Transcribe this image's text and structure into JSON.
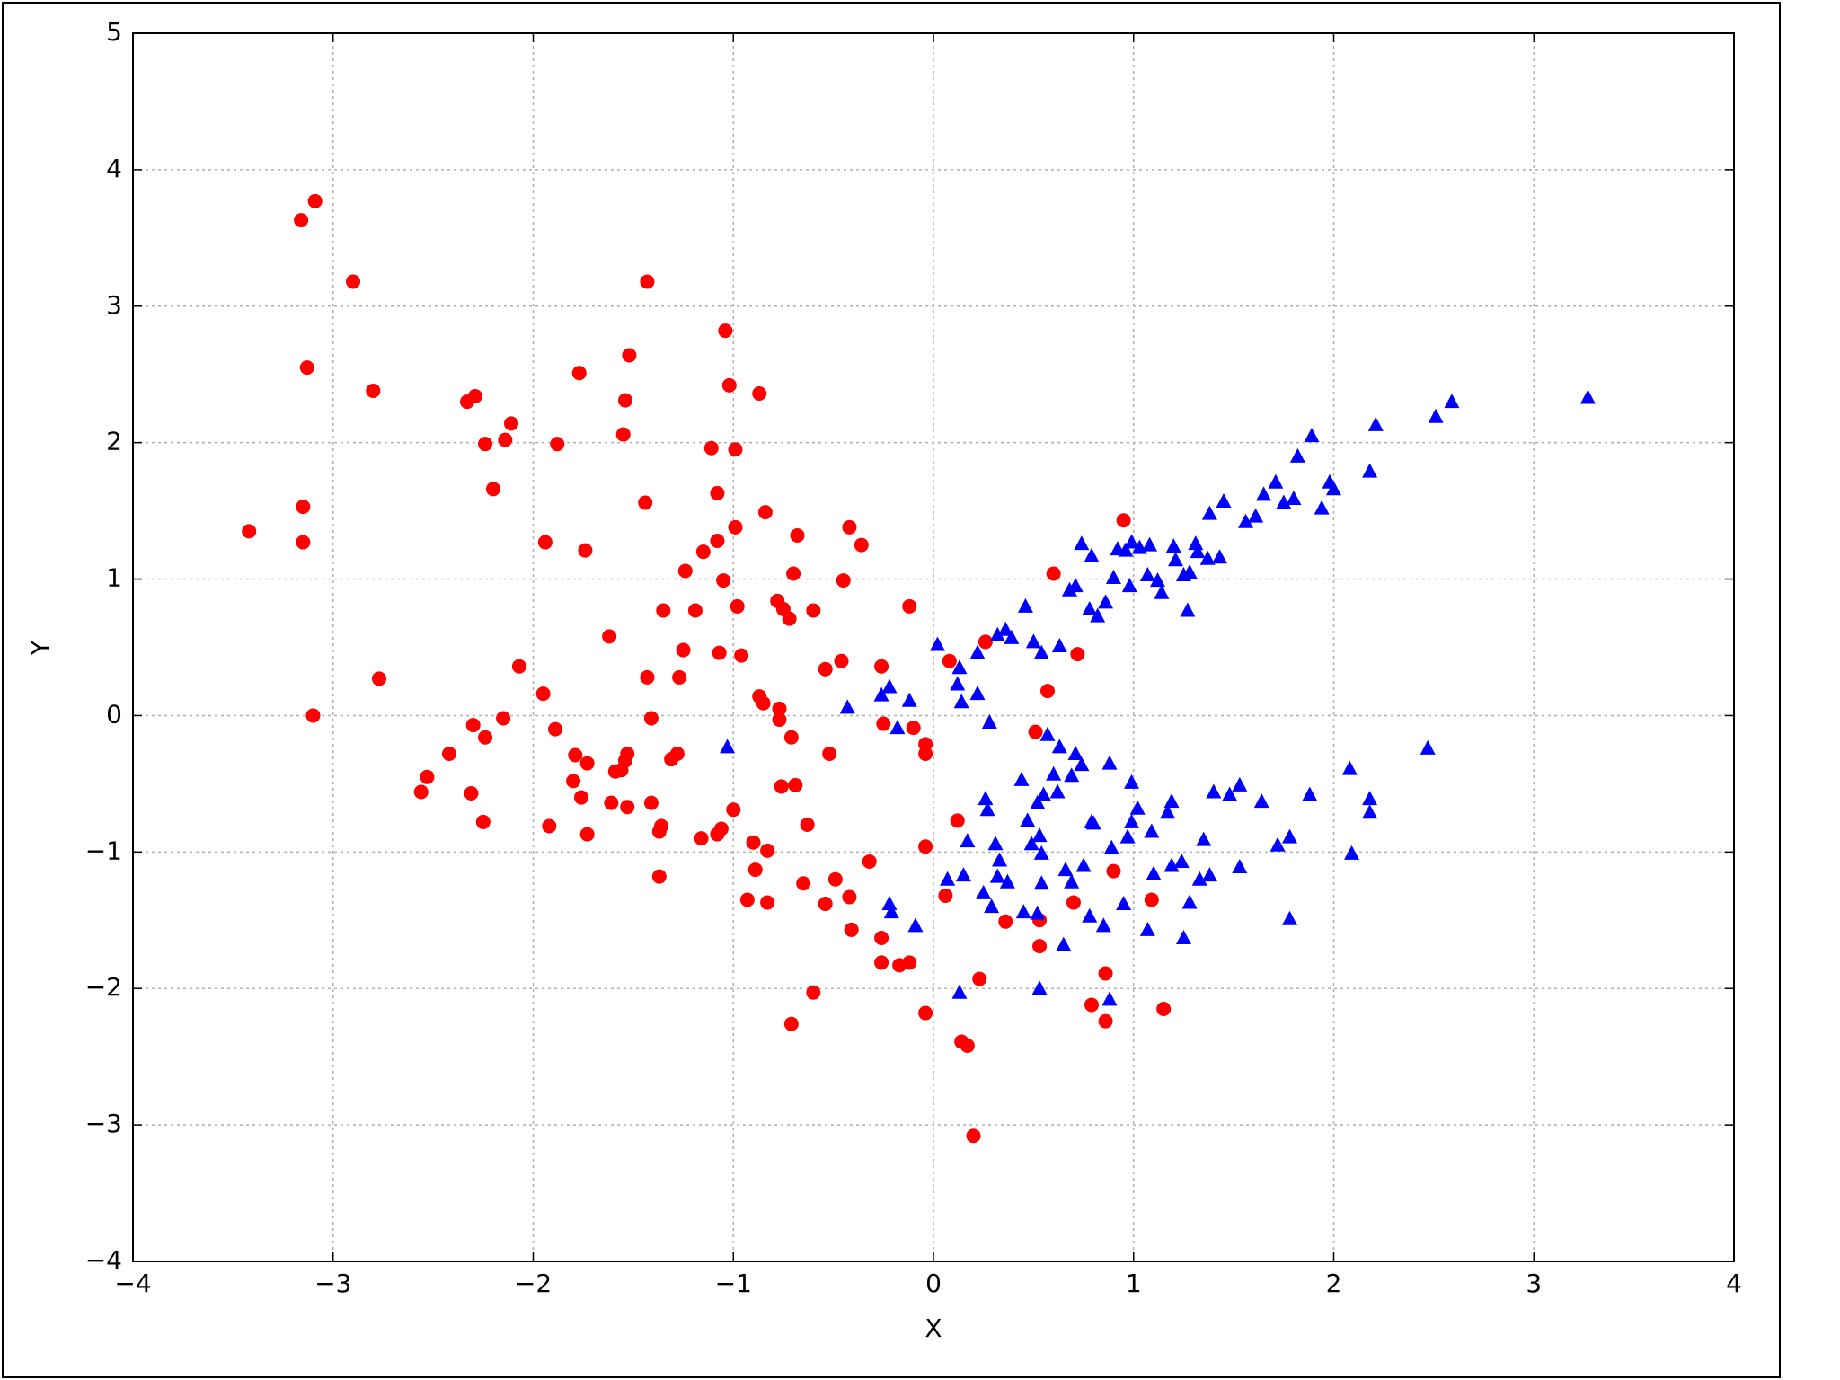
{
  "chart_data": {
    "type": "scatter",
    "x_label": "X",
    "y_label": "Y",
    "grid": true,
    "xlim": [
      -4,
      4
    ],
    "ylim": [
      -4,
      5
    ],
    "xticks": [
      {
        "value": -4,
        "label": "−4"
      },
      {
        "value": -3,
        "label": "−3"
      },
      {
        "value": -2,
        "label": "−2"
      },
      {
        "value": -1,
        "label": "−1"
      },
      0,
      1,
      2,
      3,
      4
    ],
    "yticks": [
      {
        "value": -4,
        "label": "−4"
      },
      {
        "value": -3,
        "label": "−3"
      },
      {
        "value": -2,
        "label": "−2"
      },
      {
        "value": -1,
        "label": "−1"
      },
      0,
      1,
      2,
      3,
      4,
      5
    ],
    "series": [
      {
        "color": "#ff0000",
        "marker": "circle",
        "x": [
          -3.09,
          -3.16,
          -2.9,
          -3.13,
          -2.8,
          -2.33,
          -2.29,
          -2.11,
          -2.14,
          -2.24,
          -1.88,
          -2.2,
          -3.15,
          -3.42,
          -3.15,
          -1.94,
          -1.74,
          -2.77,
          -3.1,
          -2.07,
          -1.95,
          -2.15,
          -2.3,
          -2.24,
          -2.42,
          -2.53,
          -2.56,
          -2.31,
          -2.25,
          -1.92,
          -1.89,
          -1.77,
          -1.52,
          -1.43,
          -1.54,
          -1.55,
          -1.44,
          -1.04,
          -1.02,
          -0.87,
          -1.11,
          -0.99,
          -1.08,
          -0.84,
          -0.99,
          -1.08,
          -1.15,
          -1.24,
          -1.05,
          -0.98,
          -1.19,
          -1.35,
          -1.62,
          -1.25,
          -1.07,
          -0.96,
          -1.43,
          -1.27,
          -1.41,
          -0.68,
          -0.7,
          -0.78,
          -0.75,
          -0.72,
          -0.6,
          -0.42,
          -0.36,
          -0.45,
          -0.12,
          -0.46,
          -0.54,
          -0.87,
          -0.85,
          -0.77,
          -0.77,
          -0.71,
          -0.52,
          -0.26,
          -0.25,
          -0.1,
          -0.04,
          -0.04,
          -1.79,
          -1.73,
          -1.8,
          -1.76,
          -1.73,
          -1.61,
          -1.53,
          -1.59,
          -1.56,
          -1.53,
          -1.54,
          -1.31,
          -1.28,
          -1.41,
          -1.37,
          -1.36,
          -1.37,
          -1.16,
          -1.08,
          -1.06,
          -1.0,
          -0.9,
          -0.83,
          -0.89,
          -0.93,
          -0.83,
          -0.76,
          -0.69,
          -0.63,
          -0.65,
          -0.49,
          -0.42,
          -0.54,
          -0.41,
          -0.32,
          -0.26,
          -0.26,
          -0.17,
          -0.12,
          -0.04,
          -0.6,
          -0.71,
          -0.04,
          0.06,
          0.12,
          0.08,
          0.26,
          0.51,
          0.57,
          0.6,
          0.72,
          0.95,
          0.36,
          0.53,
          0.53,
          0.7,
          0.9,
          1.09,
          0.86,
          0.79,
          0.86,
          1.15,
          0.23,
          0.14,
          0.17,
          0.2
        ],
        "values": [
          3.77,
          3.63,
          3.18,
          2.55,
          2.38,
          2.3,
          2.34,
          2.14,
          2.02,
          1.99,
          1.99,
          1.66,
          1.53,
          1.35,
          1.27,
          1.27,
          1.21,
          0.27,
          0.0,
          0.36,
          0.16,
          -0.02,
          -0.07,
          -0.16,
          -0.28,
          -0.45,
          -0.56,
          -0.57,
          -0.78,
          -0.81,
          -0.1,
          2.51,
          2.64,
          3.18,
          2.31,
          2.06,
          1.56,
          2.82,
          2.42,
          2.36,
          1.96,
          1.95,
          1.63,
          1.49,
          1.38,
          1.28,
          1.2,
          1.06,
          0.99,
          0.8,
          0.77,
          0.77,
          0.58,
          0.48,
          0.46,
          0.44,
          0.28,
          0.28,
          -0.02,
          1.32,
          1.04,
          0.84,
          0.78,
          0.71,
          0.77,
          1.38,
          1.25,
          0.99,
          0.8,
          0.4,
          0.34,
          0.14,
          0.09,
          0.05,
          -0.03,
          -0.16,
          -0.28,
          0.36,
          -0.06,
          -0.09,
          -0.21,
          -0.28,
          -0.29,
          -0.35,
          -0.48,
          -0.6,
          -0.87,
          -0.64,
          -0.67,
          -0.41,
          -0.4,
          -0.28,
          -0.33,
          -0.32,
          -0.28,
          -0.64,
          -0.85,
          -0.81,
          -1.18,
          -0.9,
          -0.87,
          -0.83,
          -0.69,
          -0.93,
          -0.99,
          -1.13,
          -1.35,
          -1.37,
          -0.52,
          -0.51,
          -0.8,
          -1.23,
          -1.2,
          -1.33,
          -1.38,
          -1.57,
          -1.07,
          -1.63,
          -1.81,
          -1.83,
          -1.81,
          -0.96,
          -2.03,
          -2.26,
          -2.18,
          -1.32,
          -0.77,
          0.4,
          0.54,
          -0.12,
          0.18,
          1.04,
          0.45,
          1.43,
          -1.51,
          -1.5,
          -1.69,
          -1.37,
          -1.14,
          -1.35,
          -1.89,
          -2.12,
          -2.24,
          -2.15,
          -1.93,
          -2.39,
          -2.42,
          -3.08
        ]
      },
      {
        "color": "#0000ff",
        "marker": "triangle",
        "x": [
          -1.03,
          -0.43,
          -0.26,
          -0.22,
          -0.12,
          -0.18,
          0.02,
          0.13,
          0.12,
          0.14,
          0.22,
          0.22,
          0.28,
          0.32,
          0.36,
          0.39,
          0.46,
          0.5,
          0.54,
          0.63,
          0.57,
          0.63,
          -0.22,
          -0.21,
          -0.09,
          0.07,
          0.15,
          0.17,
          0.13,
          0.26,
          0.27,
          0.25,
          0.29,
          0.31,
          0.33,
          0.32,
          0.37,
          0.44,
          0.45,
          0.47,
          0.49,
          0.53,
          0.52,
          0.55,
          0.54,
          0.54,
          0.52,
          0.53,
          0.62,
          0.6,
          0.69,
          0.74,
          0.71,
          0.88,
          0.99,
          0.66,
          0.69,
          0.75,
          0.79,
          0.8,
          0.89,
          0.97,
          0.99,
          1.02,
          0.95,
          0.78,
          0.85,
          0.65,
          0.88,
          1.1,
          1.07,
          1.09,
          1.17,
          1.19,
          1.19,
          1.24,
          1.28,
          1.25,
          1.33,
          1.35,
          1.38,
          1.4,
          1.48,
          1.53,
          1.53,
          1.64,
          1.72,
          1.78,
          1.78,
          1.88,
          2.08,
          2.09,
          2.18,
          2.18,
          2.47,
          0.68,
          0.71,
          0.74,
          0.79,
          0.78,
          0.82,
          0.86,
          0.9,
          0.92,
          0.96,
          0.99,
          0.98,
          1.03,
          1.08,
          1.07,
          1.12,
          1.14,
          1.2,
          1.21,
          1.25,
          1.28,
          1.27,
          1.31,
          1.32,
          1.37,
          1.43,
          1.38,
          1.45,
          1.56,
          1.61,
          1.65,
          1.71,
          1.75,
          1.8,
          1.82,
          1.89,
          1.94,
          1.98,
          2.0,
          2.18,
          2.21,
          2.51,
          2.59,
          3.27
        ],
        "values": [
          -0.23,
          0.06,
          0.15,
          0.21,
          0.11,
          -0.09,
          0.52,
          0.35,
          0.23,
          0.1,
          0.16,
          0.46,
          -0.05,
          0.59,
          0.63,
          0.57,
          0.8,
          0.54,
          0.46,
          0.51,
          -0.14,
          -0.23,
          -1.38,
          -1.44,
          -1.54,
          -1.2,
          -1.17,
          -0.92,
          -2.03,
          -0.61,
          -0.69,
          -1.3,
          -1.4,
          -0.94,
          -1.06,
          -1.18,
          -1.22,
          -0.47,
          -1.44,
          -0.77,
          -0.94,
          -0.88,
          -0.64,
          -0.58,
          -1.01,
          -1.23,
          -1.45,
          -2.0,
          -0.56,
          -0.43,
          -0.44,
          -0.36,
          -0.28,
          -0.35,
          -0.49,
          -1.13,
          -1.22,
          -1.1,
          -0.78,
          -0.79,
          -0.97,
          -0.89,
          -0.78,
          -0.68,
          -1.38,
          -1.47,
          -1.54,
          -1.68,
          -2.08,
          -1.16,
          -1.57,
          -0.85,
          -0.71,
          -0.63,
          -1.1,
          -1.07,
          -1.37,
          -1.63,
          -1.2,
          -0.91,
          -1.17,
          -0.56,
          -0.58,
          -0.51,
          -1.11,
          -0.63,
          -0.95,
          -0.89,
          -1.49,
          -0.58,
          -0.39,
          -1.01,
          -0.61,
          -0.71,
          -0.24,
          0.92,
          0.95,
          1.26,
          1.17,
          0.78,
          0.73,
          0.83,
          1.01,
          1.22,
          1.21,
          1.27,
          0.95,
          1.23,
          1.25,
          1.03,
          0.99,
          0.9,
          1.24,
          1.14,
          1.03,
          1.05,
          0.77,
          1.26,
          1.2,
          1.15,
          1.16,
          1.48,
          1.57,
          1.42,
          1.46,
          1.62,
          1.71,
          1.56,
          1.59,
          1.9,
          2.05,
          1.52,
          1.71,
          1.66,
          1.79,
          2.13,
          2.19,
          2.3,
          2.33
        ]
      }
    ]
  }
}
